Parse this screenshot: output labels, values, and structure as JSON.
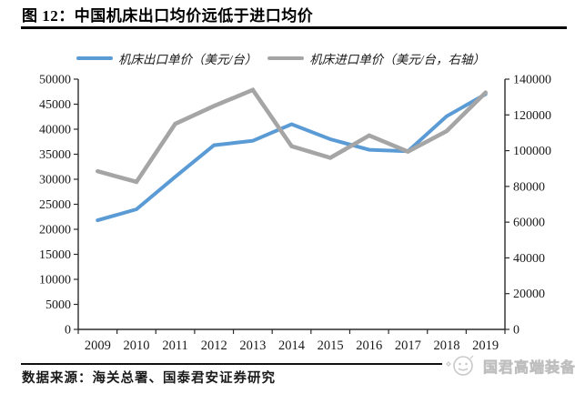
{
  "figure": {
    "title": "图 12：中国机床出口均价远低于进口均价",
    "source": "数据来源：海关总署、国泰君安证券研究",
    "watermark": "国君高端装备"
  },
  "chart_data": {
    "type": "line",
    "title": "中国机床出口均价远低于进口均价",
    "categories": [
      "2009",
      "2010",
      "2011",
      "2012",
      "2013",
      "2014",
      "2015",
      "2016",
      "2017",
      "2018",
      "2019"
    ],
    "series": [
      {
        "name": "机床出口单价（美元/台）",
        "axis": "left",
        "color": "#5B9BD5",
        "values": [
          21800,
          24000,
          30500,
          36800,
          37700,
          41000,
          38000,
          35900,
          35600,
          42600,
          47000
        ]
      },
      {
        "name": "机床进口单价（美元/台，右轴）",
        "axis": "right",
        "color": "#A5A5A5",
        "values": [
          88500,
          82500,
          115000,
          125000,
          134000,
          102500,
          96000,
          108500,
          99500,
          111000,
          132500
        ]
      }
    ],
    "left_axis": {
      "min": 0,
      "max": 50000,
      "step": 5000
    },
    "right_axis": {
      "min": 0,
      "max": 140000,
      "step": 20000
    },
    "legend_position": "top",
    "grid": false,
    "axis_color": "#2b2b2b",
    "tick_label_color": "#1a1a1a"
  }
}
